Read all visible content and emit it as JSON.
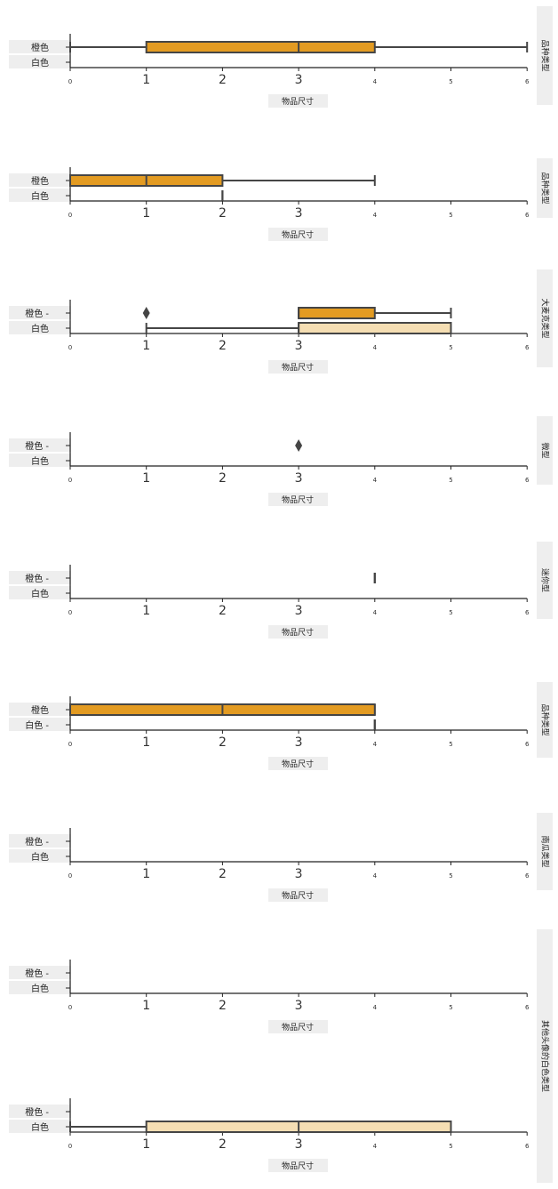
{
  "colors": {
    "orange": "#e39b22",
    "white_box": "#f5deb3",
    "line": "#454545",
    "label_bg": "#eeeeee"
  },
  "chart_data": [
    {
      "type": "boxplot",
      "facet_label": "品种类型",
      "xlabel": "物品尺寸",
      "categories": [
        "橙色",
        "白色"
      ],
      "xlim": [
        0,
        6
      ],
      "tick_labels": [
        "0",
        "1",
        "2",
        "3",
        "4",
        "5",
        "6"
      ],
      "boxes": [
        {
          "category": "橙色",
          "whisker_low": 0,
          "q1": 1,
          "median": 3,
          "q3": 4,
          "whisker_high": 6,
          "outliers": []
        },
        {
          "category": "白色"
        }
      ]
    },
    {
      "type": "boxplot",
      "facet_label": "品种类型",
      "xlabel": "物品尺寸",
      "categories": [
        "橙色",
        "白色"
      ],
      "xlim": [
        0,
        6
      ],
      "tick_labels": [
        "0",
        "1",
        "2",
        "3",
        "4",
        "5",
        "6"
      ],
      "boxes": [
        {
          "category": "橙色",
          "whisker_low": 0,
          "q1": 0,
          "median": 1,
          "q3": 2,
          "whisker_high": 4,
          "outliers": []
        },
        {
          "category": "白色",
          "whisker_low": 2,
          "q1": 2,
          "median": 2,
          "q3": 2,
          "whisker_high": 2,
          "outliers": []
        }
      ]
    },
    {
      "type": "boxplot",
      "facet_label": "大麦克类型",
      "xlabel": "物品尺寸",
      "categories": [
        "橙色 -",
        "白色"
      ],
      "xlim": [
        0,
        6
      ],
      "tick_labels": [
        "0",
        "1",
        "2",
        "3",
        "4",
        "5",
        "6"
      ],
      "boxes": [
        {
          "category": "橙色",
          "whisker_low": 3,
          "q1": 3,
          "median": 3,
          "q3": 4,
          "whisker_high": 5,
          "outliers": [
            1
          ]
        },
        {
          "category": "白色",
          "whisker_low": 1,
          "q1": 3,
          "median": 3,
          "q3": 5,
          "whisker_high": 5,
          "outliers": []
        }
      ]
    },
    {
      "type": "boxplot",
      "facet_label": "微型",
      "xlabel": "物品尺寸",
      "categories": [
        "橙色 -",
        "白色"
      ],
      "xlim": [
        0,
        6
      ],
      "tick_labels": [
        "0",
        "1",
        "2",
        "3",
        "4",
        "5",
        "6"
      ],
      "boxes": [
        {
          "category": "橙色",
          "outliers": [
            3
          ]
        },
        {
          "category": "白色"
        }
      ]
    },
    {
      "type": "boxplot",
      "facet_label": "迷你型",
      "xlabel": "物品尺寸",
      "categories": [
        "橙色 -",
        "白色"
      ],
      "xlim": [
        0,
        6
      ],
      "tick_labels": [
        "0",
        "1",
        "2",
        "3",
        "4",
        "5",
        "6"
      ],
      "boxes": [
        {
          "category": "橙色",
          "whisker_low": 4,
          "q1": 4,
          "median": 4,
          "q3": 4,
          "whisker_high": 4,
          "outliers": []
        },
        {
          "category": "白色"
        }
      ]
    },
    {
      "type": "boxplot",
      "facet_label": "品种类型",
      "xlabel": "物品尺寸",
      "categories": [
        "橙色",
        "白色 -"
      ],
      "xlim": [
        0,
        6
      ],
      "tick_labels": [
        "0",
        "1",
        "2",
        "3",
        "4",
        "5",
        "6"
      ],
      "boxes": [
        {
          "category": "橙色",
          "whisker_low": 0,
          "q1": 0,
          "median": 2,
          "q3": 4,
          "whisker_high": 4,
          "outliers": []
        },
        {
          "category": "白色",
          "whisker_low": 4,
          "q1": 4,
          "median": 4,
          "q3": 4,
          "whisker_high": 4,
          "outliers": []
        }
      ]
    },
    {
      "type": "boxplot",
      "facet_label": "南瓜类型",
      "xlabel": "物品尺寸",
      "categories": [
        "橙色 -",
        "白色"
      ],
      "xlim": [
        0,
        6
      ],
      "tick_labels": [
        "0",
        "1",
        "2",
        "3",
        "4",
        "5",
        "6"
      ],
      "boxes": [
        {
          "category": "橙色"
        },
        {
          "category": "白色"
        }
      ]
    },
    {
      "type": "boxplot",
      "facet_label": "其他头像的白色类型",
      "xlabel": "物品尺寸",
      "categories": [
        "橙色 -",
        "白色"
      ],
      "xlim": [
        0,
        6
      ],
      "tick_labels": [
        "0",
        "1",
        "2",
        "3",
        "4",
        "5",
        "6"
      ],
      "boxes": [
        {
          "category": "橙色"
        },
        {
          "category": "白色"
        }
      ]
    },
    {
      "type": "boxplot",
      "facet_label": "",
      "xlabel": "物品尺寸",
      "categories": [
        "橙色 -",
        "白色"
      ],
      "xlim": [
        0,
        6
      ],
      "tick_labels": [
        "0",
        "1",
        "2",
        "3",
        "4",
        "5",
        "6"
      ],
      "boxes": [
        {
          "category": "橙色"
        },
        {
          "category": "白色",
          "whisker_low": 0,
          "q1": 1,
          "median": 3,
          "q3": 5,
          "whisker_high": 5,
          "outliers": []
        }
      ]
    }
  ]
}
